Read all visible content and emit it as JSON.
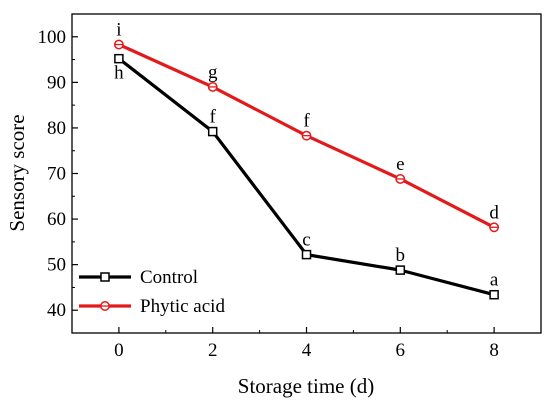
{
  "chart_data": {
    "type": "line",
    "title": "",
    "xlabel": "Storage time (d)",
    "ylabel": "Sensory score",
    "x": [
      0,
      2,
      4,
      6,
      8
    ],
    "xlim": [
      -1,
      9
    ],
    "ylim": [
      35,
      105
    ],
    "xticks": [
      "0",
      "2",
      "4",
      "6",
      "8"
    ],
    "yticks": [
      "40",
      "50",
      "60",
      "70",
      "80",
      "90",
      "100"
    ],
    "grid": false,
    "legend_position": "bottom-left",
    "series": [
      {
        "name": "Control",
        "color": "#000000",
        "marker": "open-square",
        "values": [
          95.2,
          79.2,
          52.2,
          48.8,
          43.4
        ],
        "labels": [
          "h",
          "f",
          "c",
          "b",
          "a"
        ]
      },
      {
        "name": "Phytic acid",
        "color": "#e31a1c",
        "marker": "open-circle",
        "values": [
          98.3,
          89.0,
          78.3,
          68.8,
          58.2
        ],
        "labels": [
          "i",
          "g",
          "f",
          "e",
          "d"
        ]
      }
    ]
  }
}
